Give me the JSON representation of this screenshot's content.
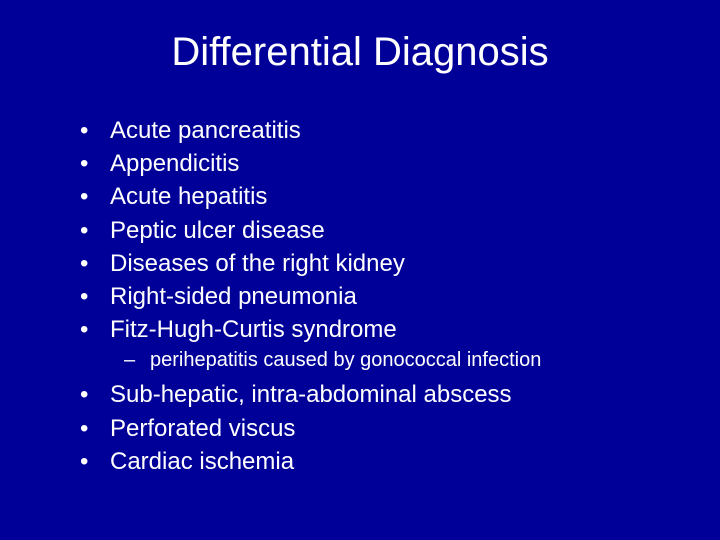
{
  "slide": {
    "background_color": "#000099",
    "text_color": "#ffffff",
    "title": "Differential Diagnosis",
    "title_fontsize": 40,
    "body_fontsize": 24,
    "sub_fontsize": 20,
    "font_family": "Arial",
    "bullets": [
      {
        "text": "Acute pancreatitis"
      },
      {
        "text": "Appendicitis"
      },
      {
        "text": "Acute hepatitis"
      },
      {
        "text": "Peptic ulcer disease"
      },
      {
        "text": "Diseases of the right kidney"
      },
      {
        "text": "Right-sided pneumonia"
      },
      {
        "text": "Fitz-Hugh-Curtis syndrome",
        "sub": [
          {
            "text": "perihepatitis caused by gonococcal infection"
          }
        ]
      },
      {
        "text": "Sub-hepatic, intra-abdominal abscess"
      },
      {
        "text": "Perforated viscus"
      },
      {
        "text": "Cardiac ischemia"
      }
    ],
    "bullet_char": "•",
    "sub_bullet_char": "–"
  }
}
